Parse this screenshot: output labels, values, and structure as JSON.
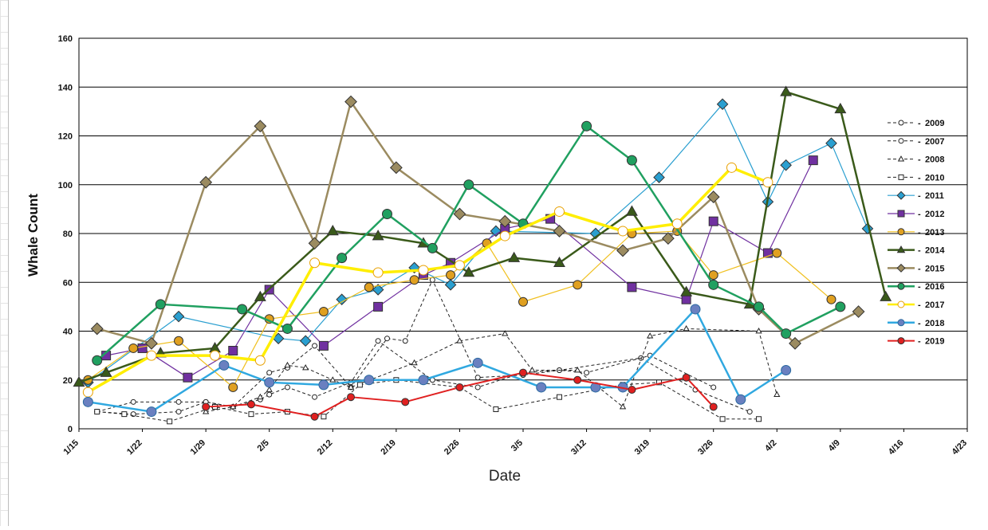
{
  "chart_data": {
    "type": "line",
    "title": "",
    "xlabel": "Date",
    "ylabel": "Whale Count",
    "ylim": [
      0,
      160
    ],
    "yticks": [
      "0",
      "20",
      "40",
      "60",
      "80",
      "100",
      "120",
      "140",
      "160"
    ],
    "xlim": [
      "1/15",
      "4/23"
    ],
    "xticks": [
      "1/15",
      "1/22",
      "1/29",
      "2/5",
      "2/12",
      "2/19",
      "2/26",
      "3/5",
      "3/12",
      "3/19",
      "3/26",
      "4/2",
      "4/9",
      "4/16",
      "4/23"
    ],
    "grid": "horizontal",
    "legend_position": "right",
    "series": [
      {
        "name": "2009",
        "color": "#222222",
        "marker": "circle",
        "marker_fill": "#ffffff",
        "dashed": true,
        "width": 1,
        "points": [
          [
            "1/17",
            7
          ],
          [
            "1/21",
            11
          ],
          [
            "1/26",
            11
          ],
          [
            "1/29",
            11
          ],
          [
            "2/1",
            9
          ],
          [
            "2/5",
            23
          ],
          [
            "2/7",
            25
          ],
          [
            "2/10",
            34
          ],
          [
            "2/14",
            17
          ],
          [
            "2/18",
            37
          ],
          [
            "2/20",
            36
          ],
          [
            "2/23",
            61
          ],
          [
            "2/28",
            21
          ],
          [
            "3/5",
            22
          ],
          [
            "3/9",
            24
          ],
          [
            "3/18",
            29
          ],
          [
            "3/24",
            16
          ],
          [
            "3/30",
            7
          ]
        ]
      },
      {
        "name": "2007",
        "color": "#222222",
        "marker": "circle",
        "marker_fill": "#ffffff",
        "dashed": true,
        "width": 1,
        "points": [
          [
            "1/17",
            7
          ],
          [
            "1/21",
            6
          ],
          [
            "1/26",
            7
          ],
          [
            "1/29",
            11
          ],
          [
            "2/1",
            9
          ],
          [
            "2/4",
            12
          ],
          [
            "2/5",
            14
          ],
          [
            "2/7",
            17
          ],
          [
            "2/10",
            13
          ],
          [
            "2/14",
            19
          ],
          [
            "2/17",
            36
          ],
          [
            "2/23",
            20
          ],
          [
            "2/28",
            17
          ],
          [
            "3/5",
            23
          ],
          [
            "3/9",
            24
          ],
          [
            "3/12",
            23
          ],
          [
            "3/19",
            30
          ],
          [
            "3/26",
            17
          ]
        ]
      },
      {
        "name": "2008",
        "color": "#222222",
        "marker": "triangle",
        "marker_fill": "#ffffff",
        "dashed": true,
        "width": 1,
        "points": [
          [
            "1/29",
            7
          ],
          [
            "2/1",
            9
          ],
          [
            "2/4",
            13
          ],
          [
            "2/5",
            16
          ],
          [
            "2/7",
            26
          ],
          [
            "2/9",
            25
          ],
          [
            "2/12",
            20
          ],
          [
            "2/14",
            17
          ],
          [
            "2/21",
            27
          ],
          [
            "2/26",
            36
          ],
          [
            "3/3",
            39
          ],
          [
            "3/6",
            24
          ],
          [
            "3/11",
            24
          ],
          [
            "3/16",
            9
          ],
          [
            "3/19",
            38
          ],
          [
            "3/23",
            41
          ],
          [
            "3/31",
            40
          ],
          [
            "4/2",
            14
          ]
        ]
      },
      {
        "name": "2010",
        "color": "#222222",
        "marker": "square",
        "marker_fill": "#ffffff",
        "dashed": true,
        "width": 1,
        "points": [
          [
            "1/17",
            7
          ],
          [
            "1/20",
            6
          ],
          [
            "1/25",
            3
          ],
          [
            "1/30",
            9
          ],
          [
            "2/3",
            6
          ],
          [
            "2/7",
            7
          ],
          [
            "2/11",
            5
          ],
          [
            "2/15",
            18
          ],
          [
            "2/19",
            20
          ],
          [
            "2/26",
            17
          ],
          [
            "3/2",
            8
          ],
          [
            "3/9",
            13
          ],
          [
            "3/16",
            18
          ],
          [
            "3/20",
            19
          ],
          [
            "3/27",
            4
          ],
          [
            "3/31",
            4
          ]
        ]
      },
      {
        "name": "2011",
        "color": "#2a9fd0",
        "marker": "diamond",
        "marker_fill": "#2a9fd0",
        "dashed": false,
        "width": 1.2,
        "points": [
          [
            "1/16",
            19
          ],
          [
            "1/26",
            46
          ],
          [
            "2/6",
            37
          ],
          [
            "2/9",
            36
          ],
          [
            "2/13",
            53
          ],
          [
            "2/17",
            57
          ],
          [
            "2/21",
            66
          ],
          [
            "2/25",
            59
          ],
          [
            "3/2",
            81
          ],
          [
            "3/13",
            80
          ],
          [
            "3/20",
            103
          ],
          [
            "3/27",
            133
          ],
          [
            "4/1",
            93
          ],
          [
            "4/3",
            108
          ],
          [
            "4/8",
            117
          ],
          [
            "4/12",
            82
          ]
        ]
      },
      {
        "name": "2012",
        "color": "#7030a0",
        "marker": "square",
        "marker_fill": "#7030a0",
        "dashed": false,
        "width": 1.2,
        "points": [
          [
            "1/18",
            30
          ],
          [
            "1/22",
            33
          ],
          [
            "1/27",
            21
          ],
          [
            "2/1",
            32
          ],
          [
            "2/5",
            57
          ],
          [
            "2/11",
            34
          ],
          [
            "2/17",
            50
          ],
          [
            "2/22",
            63
          ],
          [
            "2/25",
            68
          ],
          [
            "3/3",
            82
          ],
          [
            "3/8",
            86
          ],
          [
            "3/17",
            58
          ],
          [
            "3/23",
            53
          ],
          [
            "3/26",
            85
          ],
          [
            "4/1",
            72
          ],
          [
            "4/6",
            110
          ]
        ]
      },
      {
        "name": "2013",
        "color": "#f0c020",
        "marker": "circle",
        "marker_fill": "#e0a020",
        "dashed": false,
        "width": 1.2,
        "points": [
          [
            "1/16",
            20
          ],
          [
            "1/21",
            33
          ],
          [
            "1/26",
            36
          ],
          [
            "2/1",
            17
          ],
          [
            "2/5",
            45
          ],
          [
            "2/11",
            48
          ],
          [
            "2/16",
            58
          ],
          [
            "2/21",
            61
          ],
          [
            "2/25",
            63
          ],
          [
            "3/1",
            76
          ],
          [
            "3/5",
            52
          ],
          [
            "3/11",
            59
          ],
          [
            "3/17",
            80
          ],
          [
            "3/22",
            81
          ],
          [
            "3/26",
            63
          ],
          [
            "4/2",
            72
          ],
          [
            "4/8",
            53
          ]
        ]
      },
      {
        "name": "2014",
        "color": "#3a5a1a",
        "marker": "triangle",
        "marker_fill": "#3a5a1a",
        "dashed": false,
        "width": 2.5,
        "points": [
          [
            "1/15",
            19
          ],
          [
            "1/18",
            23
          ],
          [
            "1/24",
            31
          ],
          [
            "1/30",
            33
          ],
          [
            "2/4",
            54
          ],
          [
            "2/12",
            81
          ],
          [
            "2/17",
            79
          ],
          [
            "2/22",
            76
          ],
          [
            "2/27",
            64
          ],
          [
            "3/4",
            70
          ],
          [
            "3/9",
            68
          ],
          [
            "3/17",
            89
          ],
          [
            "3/23",
            56
          ],
          [
            "3/30",
            51
          ],
          [
            "4/3",
            138
          ],
          [
            "4/9",
            131
          ],
          [
            "4/14",
            54
          ]
        ]
      },
      {
        "name": "2015",
        "color": "#9b8b60",
        "marker": "diamond",
        "marker_fill": "#9b8b60",
        "dashed": false,
        "width": 2.5,
        "points": [
          [
            "1/17",
            41
          ],
          [
            "1/23",
            35
          ],
          [
            "1/29",
            101
          ],
          [
            "2/4",
            124
          ],
          [
            "2/10",
            76
          ],
          [
            "2/14",
            134
          ],
          [
            "2/19",
            107
          ],
          [
            "2/26",
            88
          ],
          [
            "3/3",
            85
          ],
          [
            "3/9",
            81
          ],
          [
            "3/16",
            73
          ],
          [
            "3/21",
            78
          ],
          [
            "3/26",
            95
          ],
          [
            "3/31",
            49
          ],
          [
            "4/4",
            35
          ],
          [
            "4/11",
            48
          ]
        ]
      },
      {
        "name": "2016",
        "color": "#20a060",
        "marker": "circle",
        "marker_fill": "#20a060",
        "dashed": false,
        "width": 2.5,
        "points": [
          [
            "1/17",
            28
          ],
          [
            "1/24",
            51
          ],
          [
            "2/2",
            49
          ],
          [
            "2/7",
            41
          ],
          [
            "2/13",
            70
          ],
          [
            "2/18",
            88
          ],
          [
            "2/23",
            74
          ],
          [
            "2/27",
            100
          ],
          [
            "3/5",
            84
          ],
          [
            "3/12",
            124
          ],
          [
            "3/17",
            110
          ],
          [
            "3/26",
            59
          ],
          [
            "3/31",
            50
          ],
          [
            "4/3",
            39
          ],
          [
            "4/9",
            50
          ]
        ]
      },
      {
        "name": "2017",
        "color": "#ffee00",
        "marker": "circle",
        "marker_fill": "#ffffff",
        "dashed": false,
        "width": 3.5,
        "points": [
          [
            "1/16",
            15
          ],
          [
            "1/23",
            30
          ],
          [
            "1/30",
            30
          ],
          [
            "2/4",
            28
          ],
          [
            "2/10",
            68
          ],
          [
            "2/17",
            64
          ],
          [
            "2/22",
            65
          ],
          [
            "2/26",
            67
          ],
          [
            "3/3",
            79
          ],
          [
            "3/9",
            89
          ],
          [
            "3/16",
            81
          ],
          [
            "3/22",
            84
          ],
          [
            "3/28",
            107
          ],
          [
            "4/1",
            101
          ]
        ]
      },
      {
        "name": "2018",
        "color": "#30a8e0",
        "marker": "circle",
        "marker_fill": "#6a80c0",
        "dashed": false,
        "width": 2.5,
        "points": [
          [
            "1/16",
            11
          ],
          [
            "1/23",
            7
          ],
          [
            "1/31",
            26
          ],
          [
            "2/5",
            19
          ],
          [
            "2/11",
            18
          ],
          [
            "2/16",
            20
          ],
          [
            "2/22",
            20
          ],
          [
            "2/28",
            27
          ],
          [
            "3/7",
            17
          ],
          [
            "3/13",
            17
          ],
          [
            "3/16",
            17
          ],
          [
            "3/24",
            49
          ],
          [
            "3/29",
            12
          ],
          [
            "4/3",
            24
          ]
        ]
      },
      {
        "name": "2019",
        "color": "#e02020",
        "marker": "circle",
        "marker_fill": "#e02020",
        "dashed": false,
        "width": 2,
        "points": [
          [
            "1/29",
            9
          ],
          [
            "2/3",
            10
          ],
          [
            "2/10",
            5
          ],
          [
            "2/14",
            13
          ],
          [
            "2/20",
            11
          ],
          [
            "2/26",
            17
          ],
          [
            "3/5",
            23
          ],
          [
            "3/11",
            20
          ],
          [
            "3/17",
            16
          ],
          [
            "3/23",
            21
          ],
          [
            "3/26",
            9
          ]
        ]
      }
    ]
  }
}
